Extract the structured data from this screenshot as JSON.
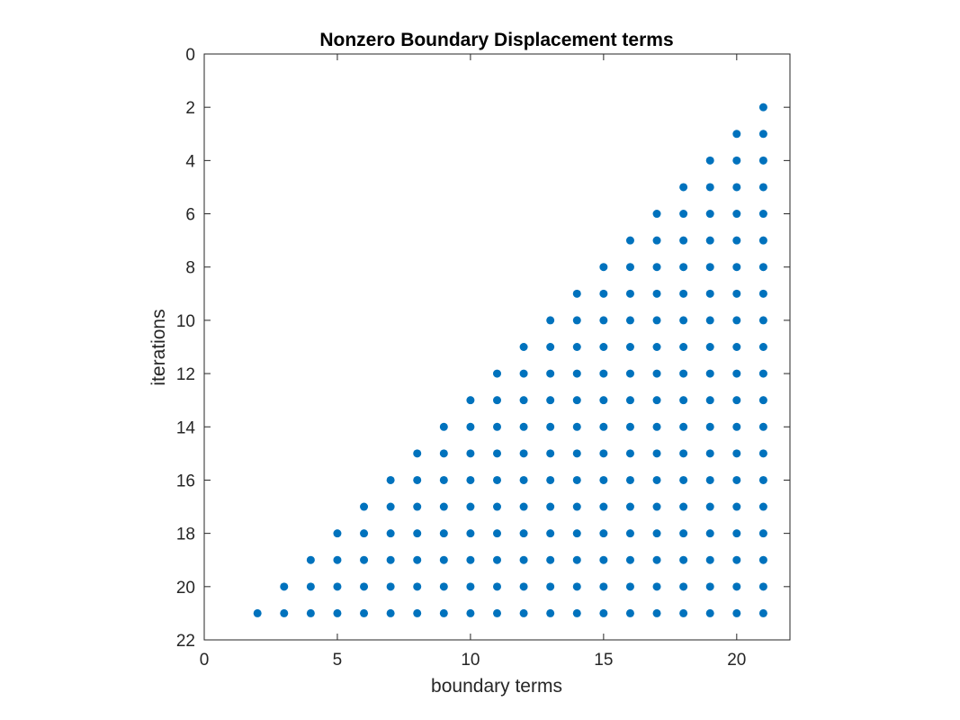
{
  "chart_data": {
    "type": "scatter",
    "title": "Nonzero Boundary Displacement terms",
    "xlabel": "boundary terms",
    "ylabel": "iterations",
    "xlim": [
      0,
      22
    ],
    "ylim": [
      0,
      22
    ],
    "y_reversed": true,
    "xticks": [
      0,
      5,
      10,
      15,
      20
    ],
    "yticks": [
      0,
      2,
      4,
      6,
      8,
      10,
      12,
      14,
      16,
      18,
      20,
      22
    ],
    "grid": false,
    "marker_color": "#0072BD",
    "pattern": "points (x, y) for every integer y from 2 to 21 and every integer x from 23 - y to 21",
    "x_max": 21,
    "y_min": 2,
    "y_max": 21
  }
}
